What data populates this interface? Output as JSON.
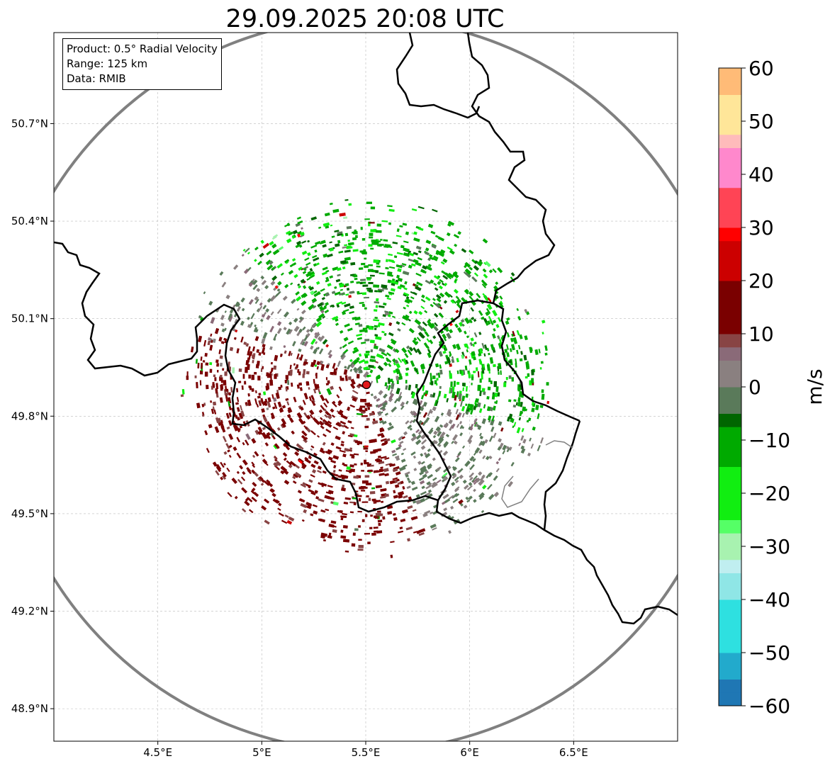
{
  "chart_data": {
    "type": "heatmap",
    "title": "29.09.2025 20:08 UTC",
    "info_box": [
      "Product: 0.5° Radial Velocity",
      "Range: 125 km",
      "Data: RMIB"
    ],
    "map": {
      "lon_range": [
        4.0,
        7.0
      ],
      "lat_range": [
        48.8,
        50.98
      ],
      "lon_ticks": [
        4.5,
        5.0,
        5.5,
        6.0,
        6.5
      ],
      "lon_tick_labels": [
        "4.5°E",
        "5°E",
        "5.5°E",
        "6°E",
        "6.5°E"
      ],
      "lat_ticks": [
        48.9,
        49.2,
        49.5,
        49.8,
        50.1,
        50.4,
        50.7
      ],
      "lat_tick_labels": [
        "48.9°N",
        "49.2°N",
        "49.5°N",
        "49.8°N",
        "50.1°N",
        "50.4°N",
        "50.7°N"
      ],
      "grid": true,
      "radar_site": {
        "lon": 5.505,
        "lat": 49.915
      },
      "range_ring_km": 125
    },
    "colorbar": {
      "label": "m/s",
      "vmin": -60,
      "vmax": 60,
      "ticks": [
        60,
        50,
        40,
        30,
        20,
        10,
        0,
        -10,
        -20,
        -30,
        -40,
        -50,
        -60
      ],
      "tick_labels": [
        "60",
        "50",
        "40",
        "30",
        "20",
        "10",
        "0",
        "−10",
        "−20",
        "−30",
        "−40",
        "−50",
        "−60"
      ],
      "stops": [
        {
          "v": -60,
          "color": "#1f77b4"
        },
        {
          "v": -55,
          "color": "#22aacc"
        },
        {
          "v": -50,
          "color": "#2ee0e0"
        },
        {
          "v": -40,
          "color": "#8fe6e6"
        },
        {
          "v": -34,
          "color": "#c0eef0"
        },
        {
          "v": -32,
          "color": "#a8f2b0"
        },
        {
          "v": -28,
          "color": "#55ff66"
        },
        {
          "v": -24,
          "color": "#11ee11"
        },
        {
          "v": -16,
          "color": "#00aa00"
        },
        {
          "v": -8,
          "color": "#006600"
        },
        {
          "v": -6,
          "color": "#5a7a5a"
        },
        {
          "v": 0,
          "color": "#8a8080"
        },
        {
          "v": 4,
          "color": "#8a6a78"
        },
        {
          "v": 8,
          "color": "#884444"
        },
        {
          "v": 10,
          "color": "#7a0000"
        },
        {
          "v": 20,
          "color": "#cc0000"
        },
        {
          "v": 28,
          "color": "#ff0000"
        },
        {
          "v": 30,
          "color": "#ff4455"
        },
        {
          "v": 38,
          "color": "#ff88cc"
        },
        {
          "v": 44,
          "color": "#ffbbbb"
        },
        {
          "v": 48,
          "color": "#ffe699"
        },
        {
          "v": 55,
          "color": "#ffbb77"
        },
        {
          "v": 60,
          "color": "#ff9955"
        }
      ]
    },
    "echo_regions": [
      {
        "name": "inbound (approaching) north-east sector",
        "mean_velocity_ms": -12,
        "center": [
          5.75,
          50.2
        ]
      },
      {
        "name": "outbound (receding) south-west sector",
        "mean_velocity_ms": 14,
        "center": [
          5.15,
          49.65
        ]
      },
      {
        "name": "near-zero band",
        "mean_velocity_ms": 0,
        "center": [
          5.75,
          49.75
        ]
      }
    ]
  }
}
